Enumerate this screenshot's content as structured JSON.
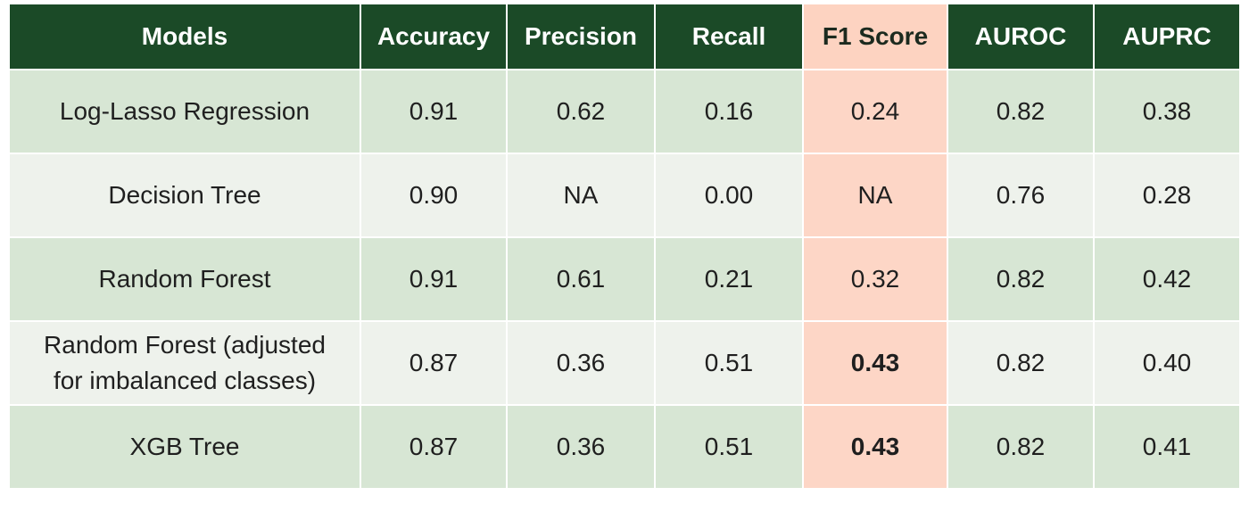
{
  "headers": {
    "models": "Models",
    "accuracy": "Accuracy",
    "precision": "Precision",
    "recall": "Recall",
    "f1": "F1 Score",
    "auroc": "AUROC",
    "auprc": "AUPRC"
  },
  "rows": [
    {
      "model": "Log-Lasso Regression",
      "accuracy": "0.91",
      "precision": "0.62",
      "recall": "0.16",
      "f1": "0.24",
      "auroc": "0.82",
      "auprc": "0.38",
      "f1_bold": false
    },
    {
      "model": "Decision Tree",
      "accuracy": "0.90",
      "precision": "NA",
      "recall": "0.00",
      "f1": "NA",
      "auroc": "0.76",
      "auprc": "0.28",
      "f1_bold": false
    },
    {
      "model": "Random Forest",
      "accuracy": "0.91",
      "precision": "0.61",
      "recall": "0.21",
      "f1": "0.32",
      "auroc": "0.82",
      "auprc": "0.42",
      "f1_bold": false
    },
    {
      "model_line1": "Random Forest (adjusted",
      "model_line2": "for imbalanced classes)",
      "accuracy": "0.87",
      "precision": "0.36",
      "recall": "0.51",
      "f1": "0.43",
      "auroc": "0.82",
      "auprc": "0.40",
      "f1_bold": true
    },
    {
      "model": "XGB Tree",
      "accuracy": "0.87",
      "precision": "0.36",
      "recall": "0.51",
      "f1": "0.43",
      "auroc": "0.82",
      "auprc": "0.41",
      "f1_bold": true
    }
  ],
  "colors": {
    "header_bg": "#1b4a27",
    "header_text": "#ffffff",
    "f1_highlight": "#fdd3c1",
    "row_dark": "#d7e6d4",
    "row_light": "#eef2ec"
  }
}
